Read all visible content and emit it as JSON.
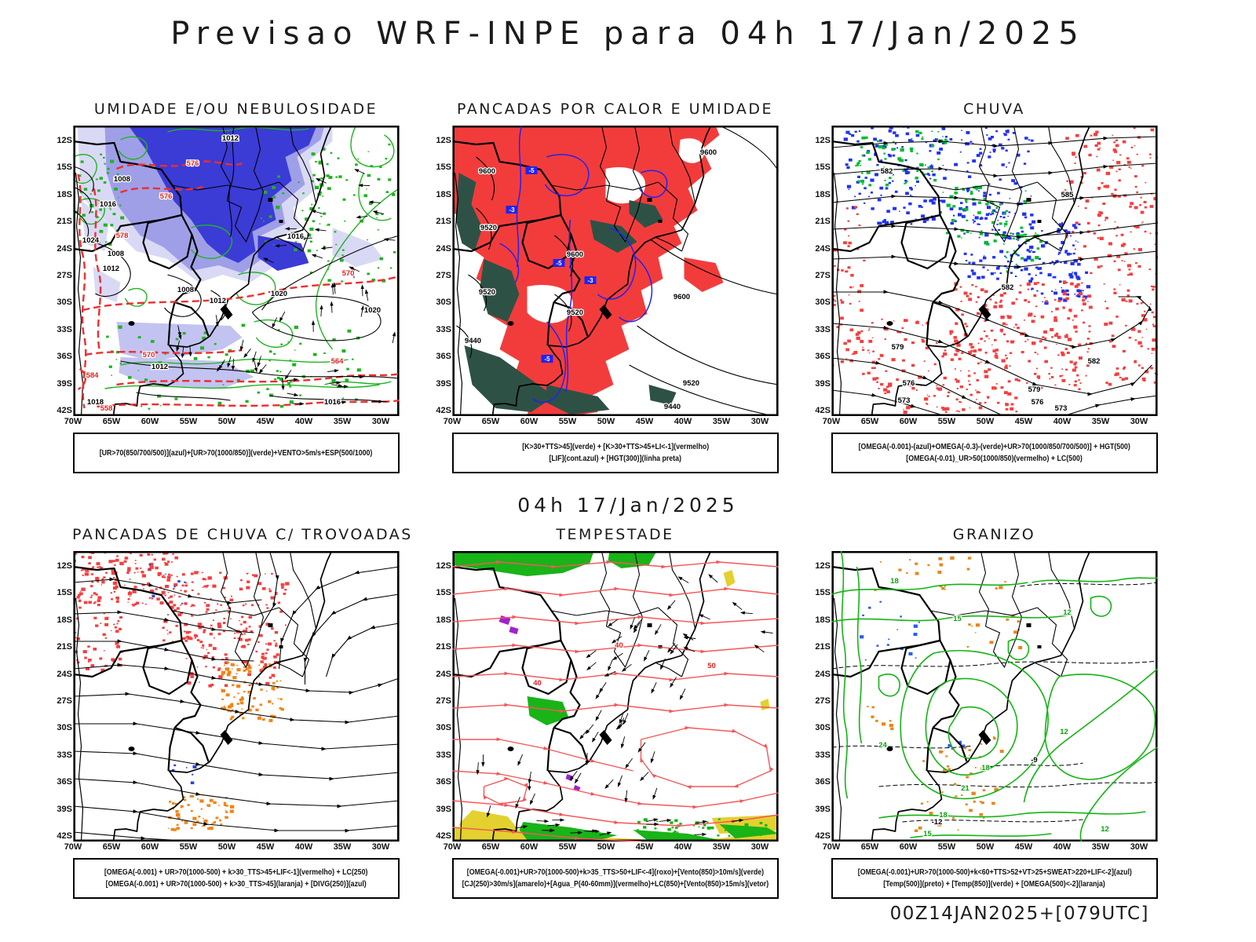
{
  "title": "Previsao WRF-INPE  para 04h 17/Jan/2025",
  "subtitle": "04h 17/Jan/2025",
  "footer": "00Z14JAN2025+[079UTC]",
  "axes": {
    "lat_ticks": [
      "12S",
      "15S",
      "18S",
      "21S",
      "24S",
      "27S",
      "30S",
      "33S",
      "36S",
      "39S",
      "42S"
    ],
    "lon_ticks": [
      "70W",
      "65W",
      "60W",
      "55W",
      "50W",
      "45W",
      "40W",
      "35W",
      "30W"
    ]
  },
  "colors": {
    "shade_dark_blue": "#3b3bd6",
    "shade_mid_blue": "#9f9fe8",
    "shade_pale_blue": "#d9d9f6",
    "shade_red": "#f23c3c",
    "shade_teal": "#2e5146",
    "shade_orange": "#f08518",
    "shade_yellow": "#e3d12f",
    "shade_purple": "#a020d0",
    "contour_green": "#1fb41f",
    "contour_blue": "#2222f0",
    "contour_red": "#ee2e2e",
    "stream_red": "#f55658",
    "contour_black": "#000000"
  },
  "panels": [
    {
      "id": "umidade",
      "title": "UMIDADE E/OU NEBULOSIDADE",
      "caption_lines": [
        "[UR>70(850/700/500)](azul)+[UR>70(1000/850)](verde)+VENTO>5m/s+ESP(500/1000)"
      ]
    },
    {
      "id": "pancadas-calor",
      "title": "PANCADAS POR CALOR E UMIDADE",
      "caption_lines": [
        "[K>30+TTS>45](verde) + [K>30+TTS>45+LI<-1](vermelho)",
        "[LIF](cont.azul) + [HGT(300)](linha preta)"
      ]
    },
    {
      "id": "chuva",
      "title": "CHUVA",
      "caption_lines": [
        "[OMEGA(-0.001)-(azul)+OMEGA(-0.3)-(verde)+UR>70(1000/850/700/500)] + HGT(500)",
        "[OMEGA(-0.01)_UR>50(1000/850)(vermelho) + LC(500)"
      ]
    },
    {
      "id": "trovoadas",
      "title": "PANCADAS DE CHUVA C/ TROVOADAS",
      "caption_lines": [
        "[OMEGA(-0.001) + UR>70(1000-500) + k>30_TTS>45+LIF<-1](vermelho) + LC(250)",
        "[OMEGA(-0.001) + UR>70(1000-500) + k>30_TTS>45](laranja) + [DIVG(250)](azul)"
      ]
    },
    {
      "id": "tempestade",
      "title": "TEMPESTADE",
      "caption_lines": [
        "[OMEGA(-0.001)+UR>70(1000-500)+k>35_TTS>50+LIF<-4](roxo)+[Vento(850)>10m/s](verde)",
        "[CJ(250)>30m/s](amarelo)+[Agua_P(40-60mm)](vermelho)+LC(850)+[Vento(850)>15m/s](vetor)"
      ]
    },
    {
      "id": "granizo",
      "title": "GRANIZO",
      "caption_lines": [
        "[OMEGA(-0.001)+UR>70(1000-500)+k<60+TTS>52+VT>25+SWEAT>220+LIF<-2](azul)",
        "[Temp(500)](preto) + [Temp(850)](verde) + [OMEGA(500)<-2](laranja)"
      ]
    }
  ],
  "map_labels": {
    "umidade_black": [
      "1012",
      "1008",
      "1016",
      "1024",
      "1008",
      "1012",
      "1008",
      "1012",
      "1012",
      "1020",
      "1020",
      "1016",
      "1016",
      "1018"
    ],
    "umidade_red": [
      "576",
      "578",
      "570",
      "570",
      "564",
      "584",
      "558",
      "576"
    ],
    "pancadas_black": [
      "9600",
      "9600",
      "9520",
      "9600",
      "9520",
      "9520",
      "9440",
      "9600",
      "9520",
      "9440"
    ],
    "pancadas_blue": [
      "-5",
      "-3",
      "-5",
      "-3",
      "-5"
    ],
    "chuva_black": [
      "582",
      "585",
      "582",
      "579",
      "576",
      "573",
      "582",
      "579",
      "576",
      "573"
    ],
    "tempestade_red": [
      "40",
      "50",
      "40"
    ],
    "granizo_green": [
      "18",
      "15",
      "12",
      "24",
      "21",
      "18",
      "12",
      "15",
      "18",
      "12"
    ],
    "granizo_black": [
      "-12",
      "-9"
    ]
  }
}
